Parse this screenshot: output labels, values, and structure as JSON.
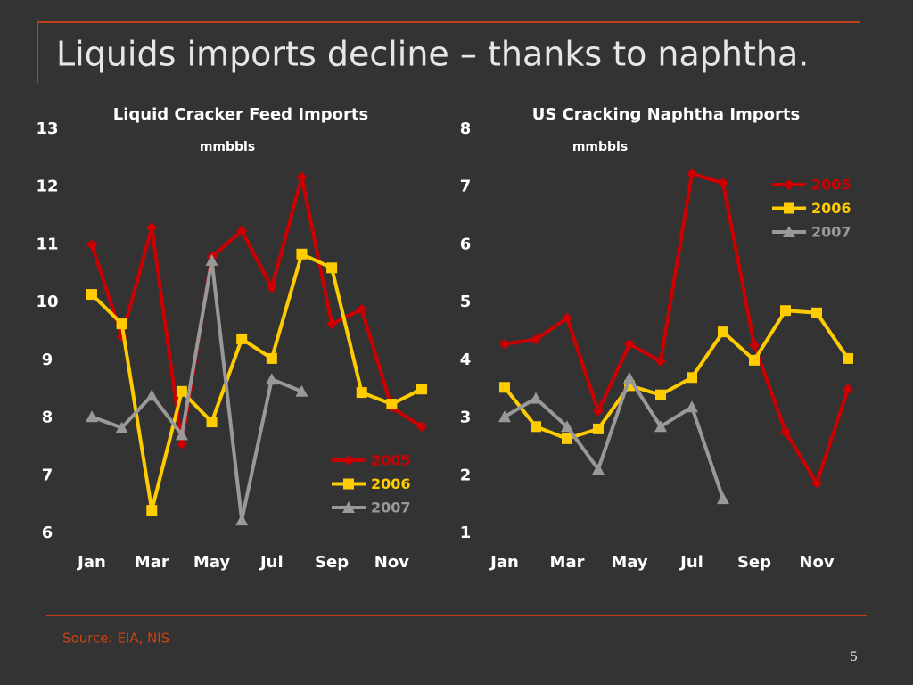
{
  "slide": {
    "title": "Liquids imports decline – thanks to naphtha.",
    "source": "Source: EIA, NIS",
    "page": "5"
  },
  "chart_data": [
    {
      "type": "line",
      "title": "Liquid Cracker Feed Imports",
      "subtitle": "mmbbls",
      "categories": [
        "Jan",
        null,
        "Mar",
        null,
        "May",
        null,
        "Jul",
        null,
        "Sep",
        null,
        "Nov",
        null
      ],
      "ylim": [
        6,
        13
      ],
      "yticks": [
        6,
        7,
        8,
        9,
        10,
        11,
        12,
        13
      ],
      "legend": "lower right",
      "series": [
        {
          "name": "2005",
          "color": "#cc0000",
          "marker": "diamond",
          "values": [
            11.0,
            9.41,
            11.3,
            7.55,
            10.79,
            11.24,
            10.26,
            12.17,
            9.63,
            9.88,
            8.18,
            7.85
          ]
        },
        {
          "name": "2006",
          "color": "#ffcc00",
          "marker": "square",
          "values": [
            10.14,
            9.63,
            6.4,
            8.46,
            7.93,
            9.37,
            9.03,
            10.84,
            10.6,
            8.44,
            8.24,
            8.5
          ]
        },
        {
          "name": "2007",
          "color": "#999999",
          "marker": "triangle",
          "values": [
            8.02,
            7.83,
            8.39,
            7.71,
            10.73,
            6.23,
            8.67,
            8.46,
            null,
            null,
            null,
            null
          ]
        }
      ]
    },
    {
      "type": "line",
      "title": "US Cracking Naphtha Imports",
      "subtitle": "mmbbls",
      "categories": [
        "Jan",
        null,
        "Mar",
        null,
        "May",
        null,
        "Jul",
        null,
        "Sep",
        null,
        "Nov",
        null
      ],
      "ylim": [
        1,
        8
      ],
      "yticks": [
        1,
        2,
        3,
        4,
        5,
        6,
        7,
        8
      ],
      "legend": "upper right",
      "series": [
        {
          "name": "2005",
          "color": "#cc0000",
          "marker": "diamond",
          "values": [
            4.28,
            4.36,
            4.73,
            3.12,
            4.28,
            3.98,
            7.23,
            7.07,
            4.26,
            2.76,
            1.87,
            3.5
          ]
        },
        {
          "name": "2006",
          "color": "#ffcc00",
          "marker": "square",
          "values": [
            3.53,
            2.85,
            2.64,
            2.81,
            3.56,
            3.4,
            3.7,
            4.49,
            4.0,
            4.86,
            4.82,
            4.03
          ]
        },
        {
          "name": "2007",
          "color": "#999999",
          "marker": "triangle",
          "values": [
            3.02,
            3.34,
            2.85,
            2.11,
            3.69,
            2.85,
            3.19,
            1.6,
            null,
            null,
            null,
            null
          ]
        }
      ]
    }
  ]
}
